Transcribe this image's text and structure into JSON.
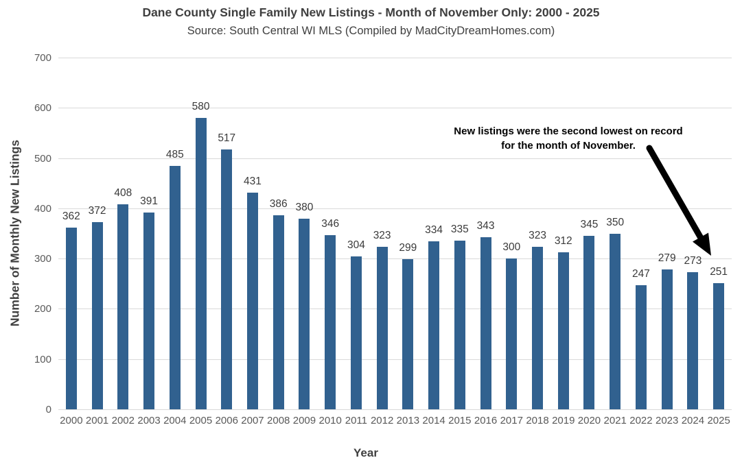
{
  "chart_data": {
    "type": "bar",
    "title": "Dane County Single Family New Listings - Month of November Only: 2000 - 2025",
    "subtitle": "Source: South Central WI MLS (Compiled by MadCityDreamHomes.com)",
    "xlabel": "Year",
    "ylabel": "Number of Monthly New Listings",
    "categories": [
      "2000",
      "2001",
      "2002",
      "2003",
      "2004",
      "2005",
      "2006",
      "2007",
      "2008",
      "2009",
      "2010",
      "2011",
      "2012",
      "2013",
      "2014",
      "2015",
      "2016",
      "2017",
      "2018",
      "2019",
      "2020",
      "2021",
      "2022",
      "2023",
      "2024",
      "2025"
    ],
    "values": [
      362,
      372,
      408,
      391,
      485,
      580,
      517,
      431,
      386,
      380,
      346,
      304,
      323,
      299,
      334,
      335,
      343,
      300,
      323,
      312,
      345,
      350,
      247,
      279,
      273,
      251
    ],
    "ylim": [
      0,
      700
    ],
    "yticks": [
      0,
      100,
      200,
      300,
      400,
      500,
      600,
      700
    ],
    "grid": true,
    "legend": false,
    "data_labels": true,
    "annotation": {
      "lines": [
        "New listings were the second lowest on record",
        "for the month of November."
      ],
      "points_to": "2025"
    },
    "colors": {
      "bar": "#31618f",
      "gridline": "#d9d9d9",
      "tick_text": "#595959",
      "title_text": "#3f3f3f",
      "data_label_text": "#3a3a3a",
      "annotation_text": "#000000",
      "arrow": "#000000"
    }
  }
}
